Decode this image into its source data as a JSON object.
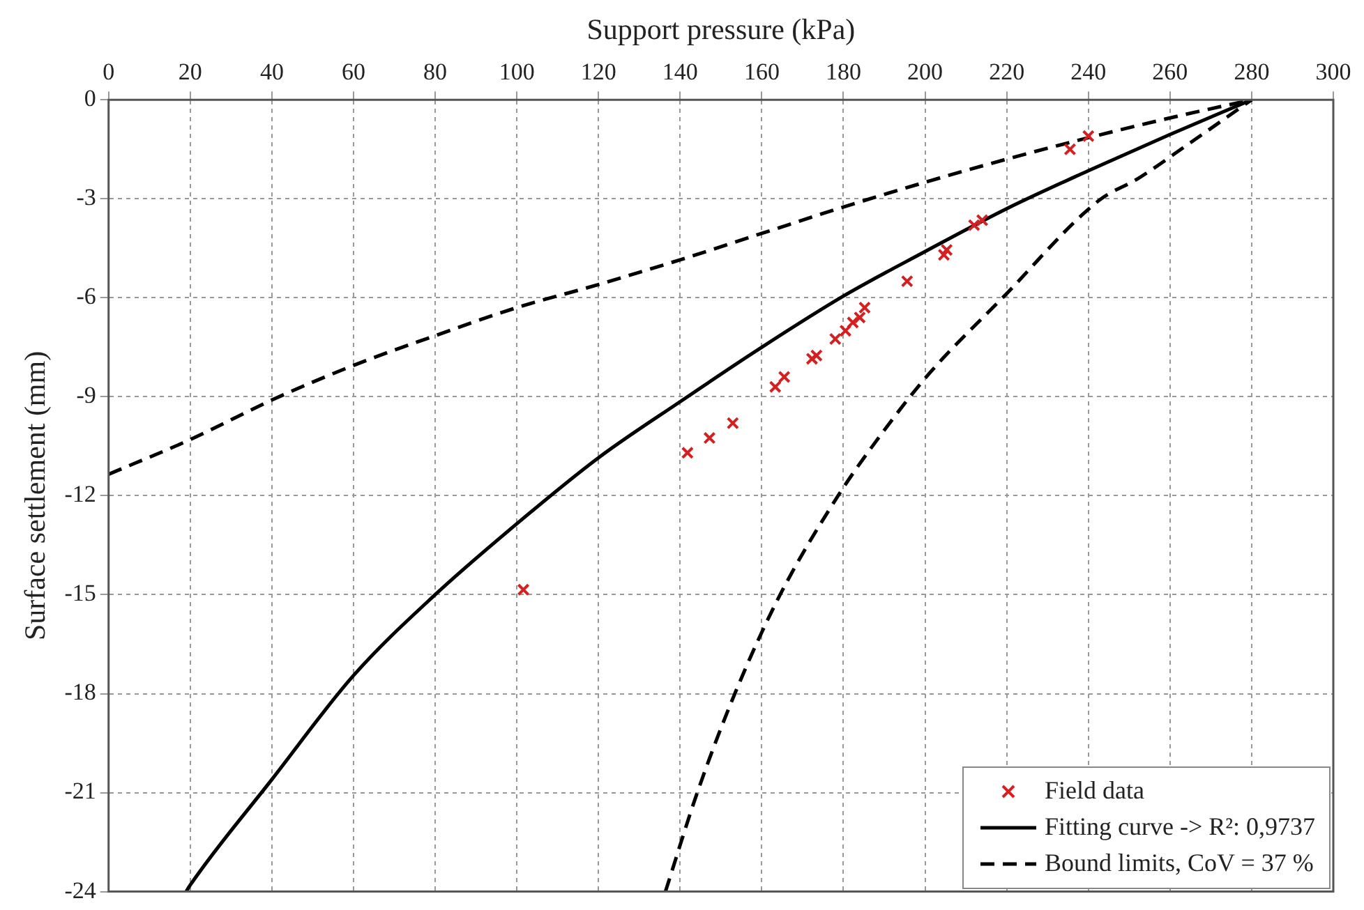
{
  "chart_data": {
    "type": "scatter",
    "xlabel": "Support pressure (kPa)",
    "ylabel": "Surface settlement (mm)",
    "xlim": [
      0,
      300
    ],
    "xticks": [
      0,
      20,
      40,
      60,
      80,
      100,
      120,
      140,
      160,
      180,
      200,
      220,
      240,
      260,
      280,
      300
    ],
    "ylim": [
      -24,
      0
    ],
    "yticks": [
      -24,
      -21,
      -18,
      -15,
      -12,
      -9,
      -6,
      -3,
      0
    ],
    "grid": true,
    "legend": "bottom right",
    "series": [
      {
        "name": "Field data",
        "type": "scatter",
        "marker": "cross",
        "color": "#d42020",
        "x": [
          240,
          235.5,
          214,
          212,
          205.3,
          204.6,
          195.6,
          185.2,
          184,
          182.3,
          180.5,
          178,
          173.4,
          172.3,
          165.5,
          163.3,
          152.9,
          147.2,
          141.8,
          101.6
        ],
        "values": [
          -1.1,
          -1.5,
          -3.65,
          -3.8,
          -4.55,
          -4.7,
          -5.5,
          -6.3,
          -6.6,
          -6.75,
          -7.0,
          -7.25,
          -7.75,
          -7.85,
          -8.4,
          -8.7,
          -9.8,
          -10.25,
          -10.7,
          -14.85
        ]
      },
      {
        "name": "Fitting curve -> R²: 0,9737",
        "type": "line",
        "line_style": "solid",
        "marker": "none",
        "color": "#000000",
        "x": [
          19,
          20,
          40,
          60,
          80,
          100,
          120,
          140,
          160,
          180,
          200,
          220,
          240,
          260,
          280
        ],
        "values": [
          -24,
          -23.8,
          -20.6,
          -17.45,
          -15,
          -12.85,
          -10.85,
          -9.15,
          -7.5,
          -5.95,
          -4.6,
          -3.3,
          -2.15,
          -1.05,
          0
        ]
      },
      {
        "name": "Bound limits, CoV = 37 %",
        "type": "line",
        "line_style": "dashed",
        "marker": "none",
        "color": "#000000",
        "x": [
          0,
          20,
          40,
          60,
          80,
          100,
          120,
          140,
          160,
          180,
          200,
          220,
          240,
          260,
          280
        ],
        "values": [
          -11.35,
          -10.3,
          -9.1,
          -8.05,
          -7.15,
          -6.3,
          -5.6,
          -4.85,
          -4.05,
          -3.25,
          -2.5,
          -1.8,
          -1.15,
          -0.55,
          0
        ]
      },
      {
        "type": "line",
        "line_style": "dashed",
        "marker": "none",
        "color": "#000000",
        "x": [
          136.4,
          144.2,
          153.4,
          164.5,
          178.7,
          187.7,
          201,
          219,
          242.6,
          252,
          265,
          280
        ],
        "values": [
          -24,
          -21,
          -18,
          -15,
          -12,
          -10.4,
          -8.3,
          -6,
          -3.05,
          -2.4,
          -1.3,
          0
        ]
      }
    ]
  }
}
